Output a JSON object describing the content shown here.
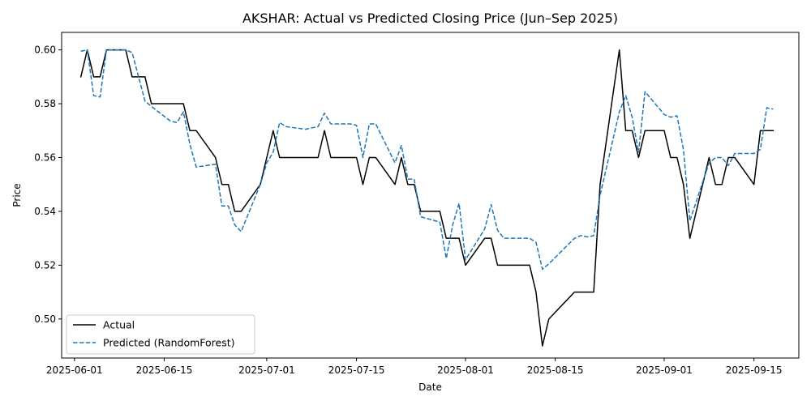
{
  "chart_data": {
    "type": "line",
    "title": "AKSHAR: Actual vs Predicted Closing Price (Jun–Sep 2025)",
    "xlabel": "Date",
    "ylabel": "Price",
    "xlim": [
      "2025-05-30",
      "2025-09-22"
    ],
    "ylim": [
      0.4855,
      0.6065
    ],
    "x_ticks": [
      "2025-06-01",
      "2025-06-15",
      "2025-07-01",
      "2025-07-15",
      "2025-08-01",
      "2025-08-15",
      "2025-09-01",
      "2025-09-15"
    ],
    "y_ticks": [
      0.5,
      0.52,
      0.54,
      0.56,
      0.58,
      0.6
    ],
    "y_tick_labels": [
      "0.50",
      "0.52",
      "0.54",
      "0.56",
      "0.58",
      "0.60"
    ],
    "grid": false,
    "legend_position": "lower-left",
    "series": [
      {
        "name": "Actual",
        "color": "#000000",
        "style": "solid",
        "x": [
          "2025-06-02",
          "2025-06-03",
          "2025-06-04",
          "2025-06-05",
          "2025-06-06",
          "2025-06-09",
          "2025-06-10",
          "2025-06-11",
          "2025-06-12",
          "2025-06-13",
          "2025-06-16",
          "2025-06-17",
          "2025-06-18",
          "2025-06-19",
          "2025-06-20",
          "2025-06-23",
          "2025-06-24",
          "2025-06-25",
          "2025-06-26",
          "2025-06-27",
          "2025-06-30",
          "2025-07-01",
          "2025-07-02",
          "2025-07-03",
          "2025-07-04",
          "2025-07-07",
          "2025-07-08",
          "2025-07-09",
          "2025-07-10",
          "2025-07-11",
          "2025-07-14",
          "2025-07-15",
          "2025-07-16",
          "2025-07-17",
          "2025-07-18",
          "2025-07-21",
          "2025-07-22",
          "2025-07-23",
          "2025-07-24",
          "2025-07-25",
          "2025-07-28",
          "2025-07-29",
          "2025-07-30",
          "2025-07-31",
          "2025-08-01",
          "2025-08-04",
          "2025-08-05",
          "2025-08-06",
          "2025-08-07",
          "2025-08-08",
          "2025-08-11",
          "2025-08-12",
          "2025-08-13",
          "2025-08-14",
          "2025-08-18",
          "2025-08-19",
          "2025-08-20",
          "2025-08-21",
          "2025-08-22",
          "2025-08-25",
          "2025-08-26",
          "2025-08-27",
          "2025-08-28",
          "2025-08-29",
          "2025-09-01",
          "2025-09-02",
          "2025-09-03",
          "2025-09-04",
          "2025-09-05",
          "2025-09-08",
          "2025-09-09",
          "2025-09-10",
          "2025-09-11",
          "2025-09-12",
          "2025-09-15",
          "2025-09-16",
          "2025-09-17",
          "2025-09-18"
        ],
        "values": [
          0.59,
          0.6,
          0.59,
          0.59,
          0.6,
          0.6,
          0.59,
          0.59,
          0.59,
          0.58,
          0.58,
          0.58,
          0.58,
          0.57,
          0.57,
          0.56,
          0.55,
          0.55,
          0.54,
          0.54,
          0.55,
          0.56,
          0.57,
          0.56,
          0.56,
          0.56,
          0.56,
          0.56,
          0.57,
          0.56,
          0.56,
          0.56,
          0.55,
          0.56,
          0.56,
          0.55,
          0.56,
          0.55,
          0.55,
          0.54,
          0.54,
          0.53,
          0.53,
          0.53,
          0.52,
          0.53,
          0.53,
          0.52,
          0.52,
          0.52,
          0.52,
          0.51,
          0.49,
          0.5,
          0.51,
          0.51,
          0.51,
          0.51,
          0.55,
          0.6,
          0.57,
          0.57,
          0.56,
          0.57,
          0.57,
          0.56,
          0.56,
          0.55,
          0.53,
          0.56,
          0.55,
          0.55,
          0.56,
          0.56,
          0.55,
          0.57,
          0.57,
          0.57
        ]
      },
      {
        "name": "Predicted (RandomForest)",
        "color": "#1f77b4",
        "style": "dashed",
        "x": [
          "2025-06-02",
          "2025-06-03",
          "2025-06-04",
          "2025-06-05",
          "2025-06-06",
          "2025-06-09",
          "2025-06-10",
          "2025-06-11",
          "2025-06-12",
          "2025-06-13",
          "2025-06-16",
          "2025-06-17",
          "2025-06-18",
          "2025-06-19",
          "2025-06-20",
          "2025-06-23",
          "2025-06-24",
          "2025-06-25",
          "2025-06-26",
          "2025-06-27",
          "2025-06-30",
          "2025-07-01",
          "2025-07-02",
          "2025-07-03",
          "2025-07-04",
          "2025-07-07",
          "2025-07-08",
          "2025-07-09",
          "2025-07-10",
          "2025-07-11",
          "2025-07-14",
          "2025-07-15",
          "2025-07-16",
          "2025-07-17",
          "2025-07-18",
          "2025-07-21",
          "2025-07-22",
          "2025-07-23",
          "2025-07-24",
          "2025-07-25",
          "2025-07-28",
          "2025-07-29",
          "2025-07-30",
          "2025-07-31",
          "2025-08-01",
          "2025-08-04",
          "2025-08-05",
          "2025-08-06",
          "2025-08-07",
          "2025-08-08",
          "2025-08-11",
          "2025-08-12",
          "2025-08-13",
          "2025-08-14",
          "2025-08-18",
          "2025-08-19",
          "2025-08-20",
          "2025-08-21",
          "2025-08-22",
          "2025-08-25",
          "2025-08-26",
          "2025-08-27",
          "2025-08-28",
          "2025-08-29",
          "2025-09-01",
          "2025-09-02",
          "2025-09-03",
          "2025-09-04",
          "2025-09-05",
          "2025-09-08",
          "2025-09-09",
          "2025-09-10",
          "2025-09-11",
          "2025-09-12",
          "2025-09-15",
          "2025-09-16",
          "2025-09-17",
          "2025-09-18"
        ],
        "values": [
          0.5995,
          0.6,
          0.583,
          0.5825,
          0.6,
          0.6,
          0.599,
          0.59,
          0.581,
          0.579,
          0.5735,
          0.573,
          0.577,
          0.565,
          0.5565,
          0.5575,
          0.542,
          0.542,
          0.535,
          0.5325,
          0.55,
          0.558,
          0.562,
          0.573,
          0.5715,
          0.5705,
          0.571,
          0.5715,
          0.5765,
          0.5725,
          0.5725,
          0.572,
          0.56,
          0.5725,
          0.5725,
          0.558,
          0.5645,
          0.552,
          0.552,
          0.538,
          0.536,
          0.5225,
          0.535,
          0.543,
          0.522,
          0.5335,
          0.5425,
          0.533,
          0.53,
          0.53,
          0.53,
          0.5285,
          0.5185,
          0.5205,
          0.53,
          0.531,
          0.5305,
          0.531,
          0.546,
          0.577,
          0.583,
          0.575,
          0.562,
          0.5845,
          0.576,
          0.575,
          0.5755,
          0.563,
          0.5365,
          0.558,
          0.56,
          0.56,
          0.557,
          0.5615,
          0.5615,
          0.563,
          0.5785,
          0.578
        ]
      }
    ]
  }
}
